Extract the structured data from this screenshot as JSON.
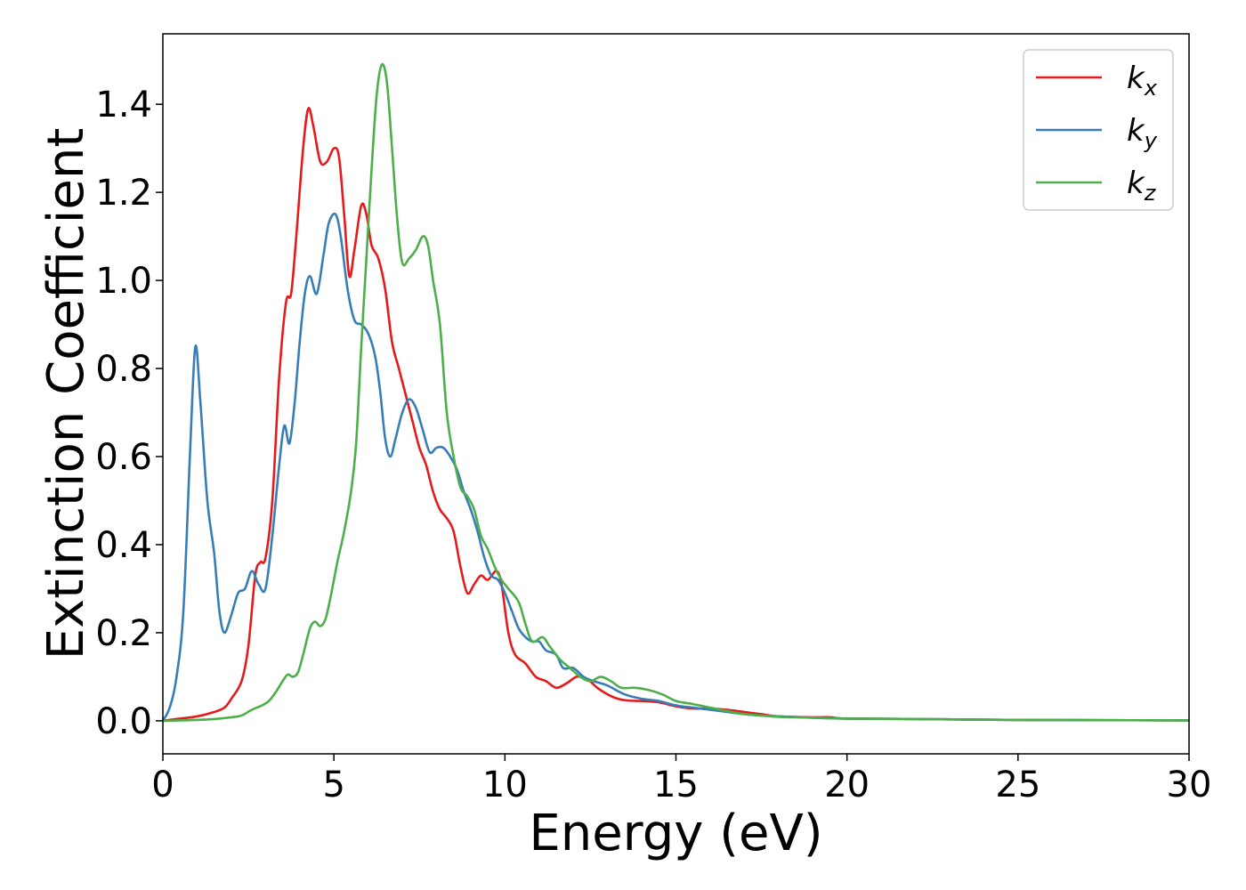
{
  "chart_data": {
    "type": "line",
    "title": "",
    "xlabel": "Energy (eV)",
    "ylabel": "Extinction Coefficient",
    "xlim": [
      0,
      30
    ],
    "ylim": [
      -0.075,
      1.56
    ],
    "xticks": [
      0,
      5,
      10,
      15,
      20,
      25,
      30
    ],
    "xtick_labels": [
      "0",
      "5",
      "10",
      "15",
      "20",
      "25",
      "30"
    ],
    "yticks": [
      0.0,
      0.2,
      0.4,
      0.6,
      0.8,
      1.0,
      1.2,
      1.4
    ],
    "ytick_labels": [
      "0.0",
      "0.2",
      "0.4",
      "0.6",
      "0.8",
      "1.0",
      "1.2",
      "1.4"
    ],
    "grid": false,
    "legend_position": "top-right",
    "series": [
      {
        "name": "kx",
        "label_base": "k",
        "label_sub": "x",
        "color": "#e41a1c",
        "points": [
          [
            0,
            0
          ],
          [
            0.5,
            0.005
          ],
          [
            1.0,
            0.01
          ],
          [
            1.5,
            0.02
          ],
          [
            1.8,
            0.03
          ],
          [
            2.0,
            0.05
          ],
          [
            2.3,
            0.09
          ],
          [
            2.5,
            0.17
          ],
          [
            2.7,
            0.33
          ],
          [
            2.85,
            0.36
          ],
          [
            3.0,
            0.37
          ],
          [
            3.2,
            0.5
          ],
          [
            3.4,
            0.78
          ],
          [
            3.6,
            0.95
          ],
          [
            3.75,
            0.97
          ],
          [
            3.9,
            1.1
          ],
          [
            4.1,
            1.3
          ],
          [
            4.25,
            1.39
          ],
          [
            4.4,
            1.35
          ],
          [
            4.6,
            1.27
          ],
          [
            4.8,
            1.27
          ],
          [
            5.0,
            1.3
          ],
          [
            5.15,
            1.28
          ],
          [
            5.3,
            1.15
          ],
          [
            5.45,
            1.01
          ],
          [
            5.6,
            1.07
          ],
          [
            5.8,
            1.17
          ],
          [
            5.95,
            1.15
          ],
          [
            6.1,
            1.08
          ],
          [
            6.3,
            1.05
          ],
          [
            6.5,
            0.98
          ],
          [
            6.7,
            0.86
          ],
          [
            6.9,
            0.8
          ],
          [
            7.1,
            0.74
          ],
          [
            7.3,
            0.68
          ],
          [
            7.5,
            0.62
          ],
          [
            7.7,
            0.58
          ],
          [
            7.9,
            0.52
          ],
          [
            8.1,
            0.48
          ],
          [
            8.3,
            0.46
          ],
          [
            8.5,
            0.43
          ],
          [
            8.7,
            0.35
          ],
          [
            8.9,
            0.29
          ],
          [
            9.1,
            0.31
          ],
          [
            9.3,
            0.33
          ],
          [
            9.5,
            0.32
          ],
          [
            9.75,
            0.34
          ],
          [
            9.9,
            0.31
          ],
          [
            10.1,
            0.2
          ],
          [
            10.3,
            0.15
          ],
          [
            10.6,
            0.13
          ],
          [
            10.9,
            0.1
          ],
          [
            11.2,
            0.09
          ],
          [
            11.5,
            0.075
          ],
          [
            11.8,
            0.085
          ],
          [
            12.1,
            0.1
          ],
          [
            12.4,
            0.095
          ],
          [
            12.7,
            0.075
          ],
          [
            13.0,
            0.06
          ],
          [
            13.3,
            0.05
          ],
          [
            13.6,
            0.046
          ],
          [
            14.0,
            0.045
          ],
          [
            14.5,
            0.042
          ],
          [
            15.0,
            0.033
          ],
          [
            15.5,
            0.028
          ],
          [
            16.0,
            0.028
          ],
          [
            16.5,
            0.025
          ],
          [
            17.0,
            0.02
          ],
          [
            17.5,
            0.015
          ],
          [
            18.0,
            0.01
          ],
          [
            19.0,
            0.008
          ],
          [
            19.5,
            0.008
          ],
          [
            20.0,
            0.005
          ],
          [
            22.0,
            0.004
          ],
          [
            25.0,
            0.002
          ],
          [
            30.0,
            0.001
          ]
        ]
      },
      {
        "name": "ky",
        "label_base": "k",
        "label_sub": "y",
        "color": "#377eb8",
        "points": [
          [
            0,
            0
          ],
          [
            0.2,
            0.03
          ],
          [
            0.4,
            0.1
          ],
          [
            0.6,
            0.25
          ],
          [
            0.8,
            0.62
          ],
          [
            0.95,
            0.85
          ],
          [
            1.1,
            0.72
          ],
          [
            1.3,
            0.5
          ],
          [
            1.5,
            0.38
          ],
          [
            1.65,
            0.25
          ],
          [
            1.8,
            0.2
          ],
          [
            2.0,
            0.24
          ],
          [
            2.2,
            0.29
          ],
          [
            2.4,
            0.3
          ],
          [
            2.6,
            0.34
          ],
          [
            2.8,
            0.31
          ],
          [
            3.0,
            0.3
          ],
          [
            3.2,
            0.42
          ],
          [
            3.4,
            0.58
          ],
          [
            3.55,
            0.67
          ],
          [
            3.7,
            0.63
          ],
          [
            3.85,
            0.72
          ],
          [
            4.0,
            0.86
          ],
          [
            4.15,
            0.97
          ],
          [
            4.3,
            1.01
          ],
          [
            4.5,
            0.97
          ],
          [
            4.7,
            1.06
          ],
          [
            4.85,
            1.13
          ],
          [
            5.05,
            1.15
          ],
          [
            5.2,
            1.1
          ],
          [
            5.4,
            0.98
          ],
          [
            5.6,
            0.91
          ],
          [
            5.8,
            0.9
          ],
          [
            6.0,
            0.88
          ],
          [
            6.2,
            0.83
          ],
          [
            6.35,
            0.75
          ],
          [
            6.5,
            0.64
          ],
          [
            6.65,
            0.6
          ],
          [
            6.8,
            0.64
          ],
          [
            7.0,
            0.7
          ],
          [
            7.2,
            0.73
          ],
          [
            7.4,
            0.71
          ],
          [
            7.6,
            0.66
          ],
          [
            7.8,
            0.61
          ],
          [
            8.0,
            0.62
          ],
          [
            8.2,
            0.62
          ],
          [
            8.4,
            0.6
          ],
          [
            8.6,
            0.57
          ],
          [
            8.8,
            0.52
          ],
          [
            9.0,
            0.48
          ],
          [
            9.2,
            0.43
          ],
          [
            9.4,
            0.37
          ],
          [
            9.6,
            0.33
          ],
          [
            9.8,
            0.32
          ],
          [
            10.0,
            0.29
          ],
          [
            10.2,
            0.25
          ],
          [
            10.4,
            0.21
          ],
          [
            10.6,
            0.19
          ],
          [
            10.8,
            0.18
          ],
          [
            11.0,
            0.18
          ],
          [
            11.2,
            0.16
          ],
          [
            11.5,
            0.15
          ],
          [
            11.7,
            0.12
          ],
          [
            12.0,
            0.12
          ],
          [
            12.3,
            0.1
          ],
          [
            12.6,
            0.09
          ],
          [
            13.0,
            0.08
          ],
          [
            13.5,
            0.06
          ],
          [
            14.0,
            0.05
          ],
          [
            14.5,
            0.045
          ],
          [
            15.0,
            0.035
          ],
          [
            15.5,
            0.03
          ],
          [
            16.0,
            0.025
          ],
          [
            16.5,
            0.02
          ],
          [
            17.0,
            0.015
          ],
          [
            17.5,
            0.012
          ],
          [
            18.0,
            0.01
          ],
          [
            19.0,
            0.007
          ],
          [
            20.0,
            0.005
          ],
          [
            22.0,
            0.004
          ],
          [
            25.0,
            0.002
          ],
          [
            30.0,
            0.001
          ]
        ]
      },
      {
        "name": "kz",
        "label_base": "k",
        "label_sub": "z",
        "color": "#4daf4a",
        "points": [
          [
            0,
            0
          ],
          [
            1.0,
            0.002
          ],
          [
            1.5,
            0.004
          ],
          [
            2.0,
            0.008
          ],
          [
            2.3,
            0.012
          ],
          [
            2.6,
            0.025
          ],
          [
            2.9,
            0.035
          ],
          [
            3.1,
            0.045
          ],
          [
            3.3,
            0.065
          ],
          [
            3.5,
            0.09
          ],
          [
            3.65,
            0.105
          ],
          [
            3.8,
            0.1
          ],
          [
            3.95,
            0.11
          ],
          [
            4.1,
            0.15
          ],
          [
            4.3,
            0.21
          ],
          [
            4.45,
            0.225
          ],
          [
            4.6,
            0.215
          ],
          [
            4.75,
            0.23
          ],
          [
            4.9,
            0.28
          ],
          [
            5.1,
            0.36
          ],
          [
            5.3,
            0.43
          ],
          [
            5.5,
            0.52
          ],
          [
            5.65,
            0.63
          ],
          [
            5.8,
            0.85
          ],
          [
            5.95,
            1.05
          ],
          [
            6.1,
            1.25
          ],
          [
            6.25,
            1.42
          ],
          [
            6.4,
            1.49
          ],
          [
            6.55,
            1.45
          ],
          [
            6.7,
            1.3
          ],
          [
            6.85,
            1.14
          ],
          [
            7.0,
            1.04
          ],
          [
            7.2,
            1.05
          ],
          [
            7.4,
            1.07
          ],
          [
            7.6,
            1.1
          ],
          [
            7.75,
            1.08
          ],
          [
            7.9,
            1.0
          ],
          [
            8.1,
            0.9
          ],
          [
            8.3,
            0.7
          ],
          [
            8.5,
            0.6
          ],
          [
            8.7,
            0.53
          ],
          [
            8.9,
            0.51
          ],
          [
            9.1,
            0.48
          ],
          [
            9.3,
            0.42
          ],
          [
            9.5,
            0.39
          ],
          [
            9.7,
            0.35
          ],
          [
            9.9,
            0.32
          ],
          [
            10.1,
            0.3
          ],
          [
            10.4,
            0.27
          ],
          [
            10.6,
            0.22
          ],
          [
            10.8,
            0.18
          ],
          [
            11.1,
            0.19
          ],
          [
            11.3,
            0.17
          ],
          [
            11.6,
            0.14
          ],
          [
            11.9,
            0.12
          ],
          [
            12.2,
            0.1
          ],
          [
            12.5,
            0.09
          ],
          [
            12.8,
            0.1
          ],
          [
            13.1,
            0.09
          ],
          [
            13.4,
            0.075
          ],
          [
            13.8,
            0.075
          ],
          [
            14.2,
            0.07
          ],
          [
            14.6,
            0.06
          ],
          [
            15.0,
            0.045
          ],
          [
            15.5,
            0.038
          ],
          [
            16.0,
            0.03
          ],
          [
            16.5,
            0.022
          ],
          [
            17.0,
            0.015
          ],
          [
            17.5,
            0.012
          ],
          [
            18.0,
            0.009
          ],
          [
            19.0,
            0.007
          ],
          [
            20.0,
            0.005
          ],
          [
            22.0,
            0.004
          ],
          [
            25.0,
            0.002
          ],
          [
            30.0,
            0.001
          ]
        ]
      }
    ]
  }
}
